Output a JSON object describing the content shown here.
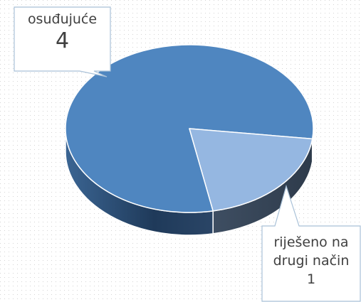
{
  "chart_data": {
    "type": "pie",
    "categories": [
      "osuđujuće",
      "riješeno na drugi način"
    ],
    "values": [
      4,
      1
    ],
    "colors": [
      "#4f86c0",
      "#95b7e1"
    ]
  }
}
